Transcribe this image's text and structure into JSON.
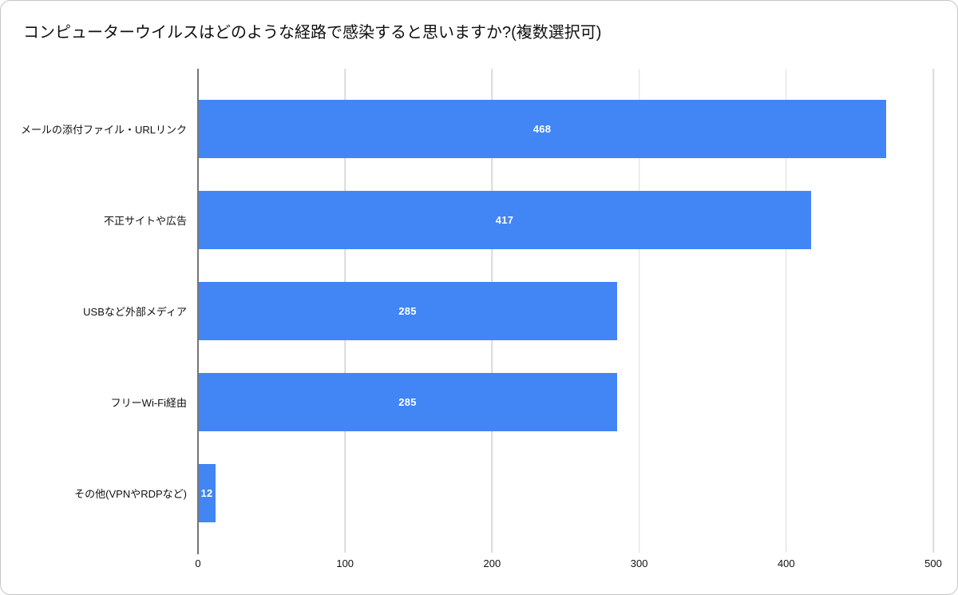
{
  "chart_data": {
    "type": "bar",
    "orientation": "horizontal",
    "title": "コンピューターウイルスはどのような経路で感染すると思いますか?(複数選択可)",
    "categories": [
      "メールの添付ファイル・URLリンク",
      "不正サイトや広告",
      "USBなど外部メディア",
      "フリーWi-Fi経由",
      "その他(VPNやRDPなど)"
    ],
    "values": [
      468,
      417,
      285,
      285,
      12
    ],
    "xlabel": "",
    "ylabel": "",
    "xlim": [
      0,
      500
    ],
    "x_ticks": [
      0,
      100,
      200,
      300,
      400,
      500
    ],
    "grid": true,
    "legend": false,
    "bar_color": "#4285f4",
    "value_label_color": "#ffffff",
    "grid_color": "#dadada",
    "axis_color": "#757575"
  }
}
